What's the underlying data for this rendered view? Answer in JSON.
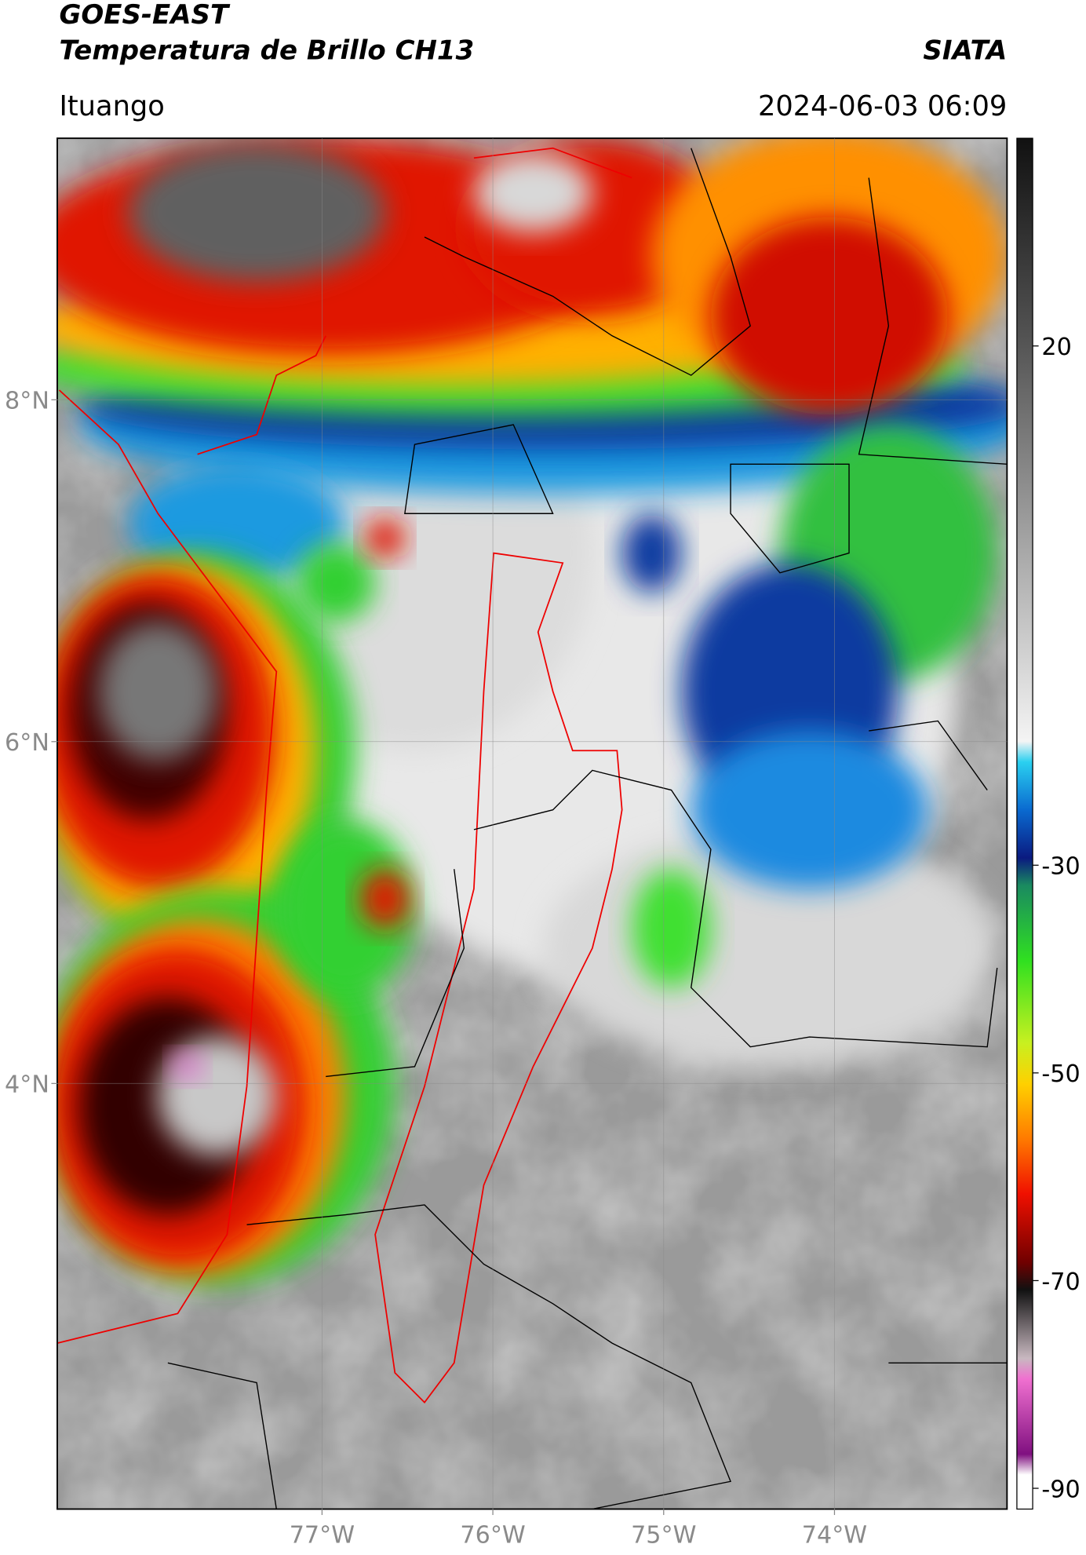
{
  "header": {
    "title": "GOES-EAST",
    "subtitle": "Temperatura de Brillo CH13",
    "source": "SIATA",
    "location": "Ituango",
    "datetime": "2024-06-03 06:09"
  },
  "map": {
    "xlim": [
      -78.55,
      -72.99
    ],
    "ylim": [
      1.51,
      9.53
    ],
    "xticks": [
      {
        "value": -77,
        "label": "77°W"
      },
      {
        "value": -76,
        "label": "76°W"
      },
      {
        "value": -75,
        "label": "75°W"
      },
      {
        "value": -74,
        "label": "74°W"
      }
    ],
    "yticks": [
      {
        "value": 8,
        "label": "8°N"
      },
      {
        "value": 6,
        "label": "6°N"
      },
      {
        "value": 4,
        "label": "4°N"
      }
    ],
    "grid": true
  },
  "colorbar": {
    "lim": [
      -92,
      40
    ],
    "ticks": [
      20,
      -30,
      -50,
      -70,
      -90
    ]
  }
}
